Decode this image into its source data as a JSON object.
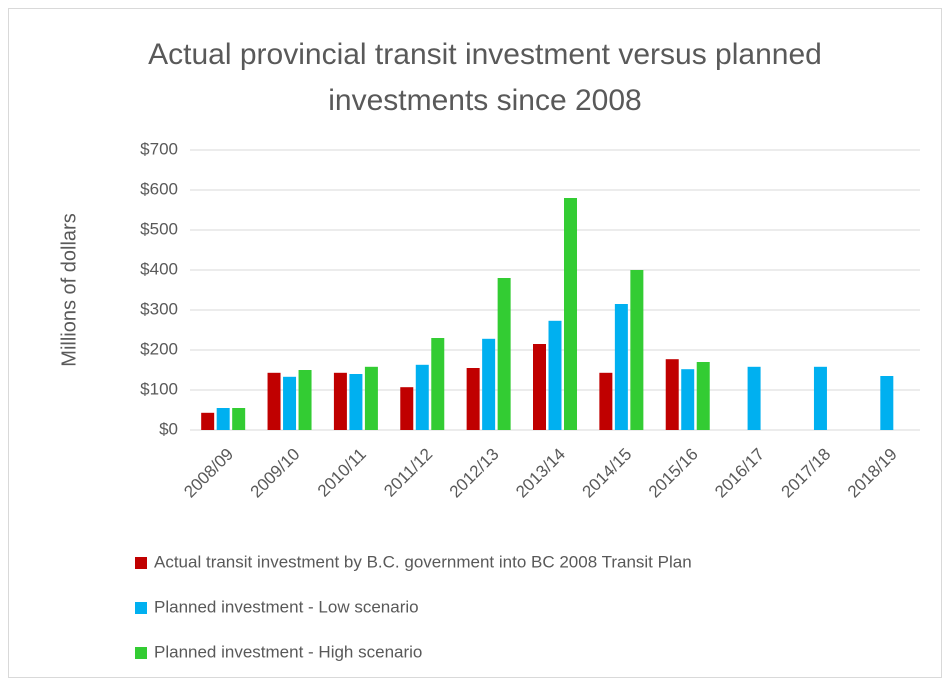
{
  "chart_data": {
    "type": "bar",
    "title": "Actual provincial transit investment versus planned investments since 2008",
    "y_label": "Millions of dollars",
    "categories": [
      "2008/09",
      "2009/10",
      "2010/11",
      "2011/12",
      "2012/13",
      "2013/14",
      "2014/15",
      "2015/16",
      "2016/17",
      "2017/18",
      "2018/19"
    ],
    "series": [
      {
        "name": "Actual transit investment by B.C. government into BC 2008 Transit Plan",
        "color": "#c00000",
        "values": [
          43,
          143,
          143,
          107,
          155,
          215,
          143,
          177,
          null,
          null,
          null
        ]
      },
      {
        "name": "Planned investment - Low scenario",
        "color": "#00b0f0",
        "values": [
          55,
          133,
          140,
          163,
          228,
          273,
          315,
          152,
          158,
          158,
          135
        ]
      },
      {
        "name": "Planned investment - High scenario",
        "color": "#33cc33",
        "values": [
          55,
          150,
          158,
          230,
          380,
          580,
          400,
          170,
          null,
          null,
          null
        ]
      }
    ],
    "ylim": [
      0,
      700
    ],
    "yticks": [
      {
        "value": 0,
        "label": "$0"
      },
      {
        "value": 100,
        "label": "$100"
      },
      {
        "value": 200,
        "label": "$200"
      },
      {
        "value": 300,
        "label": "$300"
      },
      {
        "value": 400,
        "label": "$400"
      },
      {
        "value": 500,
        "label": "$500"
      },
      {
        "value": 600,
        "label": "$600"
      },
      {
        "value": 700,
        "label": "$700"
      }
    ],
    "grid": true
  }
}
